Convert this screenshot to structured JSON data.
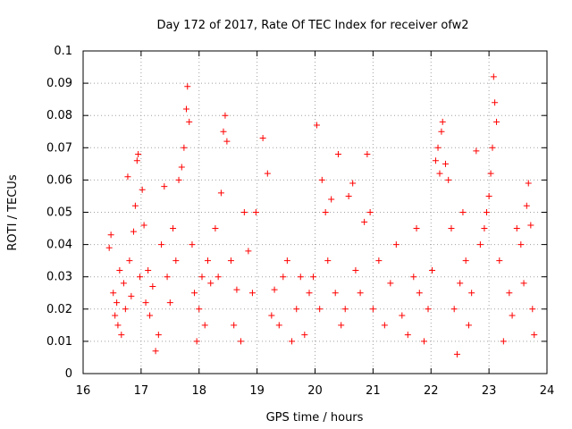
{
  "chart_data": {
    "type": "scatter",
    "title": "Day 172 of 2017, Rate Of TEC Index for receiver ofw2",
    "xlabel": "GPS time / hours",
    "ylabel": "ROTI / TECUs",
    "xlim": [
      16,
      24
    ],
    "ylim": [
      0,
      0.1
    ],
    "xticks": [
      "16",
      "17",
      "18",
      "19",
      "20",
      "21",
      "22",
      "23",
      "24"
    ],
    "yticks": [
      "0",
      "0.01",
      "0.02",
      "0.03",
      "0.04",
      "0.05",
      "0.06",
      "0.07",
      "0.08",
      "0.09",
      "0.1"
    ],
    "grid": true,
    "marker": "plus",
    "color": "#ff0000",
    "series": [
      {
        "name": "",
        "points": [
          [
            16.45,
            0.039
          ],
          [
            16.48,
            0.043
          ],
          [
            16.52,
            0.025
          ],
          [
            16.55,
            0.018
          ],
          [
            16.58,
            0.022
          ],
          [
            16.6,
            0.015
          ],
          [
            16.63,
            0.032
          ],
          [
            16.66,
            0.012
          ],
          [
            16.7,
            0.028
          ],
          [
            16.73,
            0.02
          ],
          [
            16.77,
            0.061
          ],
          [
            16.8,
            0.035
          ],
          [
            16.83,
            0.024
          ],
          [
            16.87,
            0.044
          ],
          [
            16.9,
            0.052
          ],
          [
            16.93,
            0.066
          ],
          [
            16.95,
            0.068
          ],
          [
            16.98,
            0.03
          ],
          [
            17.02,
            0.057
          ],
          [
            17.05,
            0.046
          ],
          [
            17.08,
            0.022
          ],
          [
            17.12,
            0.032
          ],
          [
            17.15,
            0.018
          ],
          [
            17.2,
            0.027
          ],
          [
            17.25,
            0.007
          ],
          [
            17.3,
            0.012
          ],
          [
            17.35,
            0.04
          ],
          [
            17.4,
            0.058
          ],
          [
            17.45,
            0.03
          ],
          [
            17.5,
            0.022
          ],
          [
            17.55,
            0.045
          ],
          [
            17.6,
            0.035
          ],
          [
            17.65,
            0.06
          ],
          [
            17.7,
            0.064
          ],
          [
            17.74,
            0.07
          ],
          [
            17.78,
            0.082
          ],
          [
            17.8,
            0.089
          ],
          [
            17.83,
            0.078
          ],
          [
            17.88,
            0.04
          ],
          [
            17.92,
            0.025
          ],
          [
            17.96,
            0.01
          ],
          [
            18.0,
            0.02
          ],
          [
            18.05,
            0.03
          ],
          [
            18.1,
            0.015
          ],
          [
            18.15,
            0.035
          ],
          [
            18.2,
            0.028
          ],
          [
            18.28,
            0.045
          ],
          [
            18.33,
            0.03
          ],
          [
            18.38,
            0.056
          ],
          [
            18.42,
            0.075
          ],
          [
            18.45,
            0.08
          ],
          [
            18.48,
            0.072
          ],
          [
            18.55,
            0.035
          ],
          [
            18.6,
            0.015
          ],
          [
            18.65,
            0.026
          ],
          [
            18.72,
            0.01
          ],
          [
            18.78,
            0.05
          ],
          [
            18.85,
            0.038
          ],
          [
            18.92,
            0.025
          ],
          [
            18.98,
            0.05
          ],
          [
            19.1,
            0.073
          ],
          [
            19.18,
            0.062
          ],
          [
            19.25,
            0.018
          ],
          [
            19.3,
            0.026
          ],
          [
            19.38,
            0.015
          ],
          [
            19.45,
            0.03
          ],
          [
            19.52,
            0.035
          ],
          [
            19.6,
            0.01
          ],
          [
            19.68,
            0.02
          ],
          [
            19.75,
            0.03
          ],
          [
            19.82,
            0.012
          ],
          [
            19.9,
            0.025
          ],
          [
            19.97,
            0.03
          ],
          [
            20.03,
            0.077
          ],
          [
            20.08,
            0.02
          ],
          [
            20.12,
            0.06
          ],
          [
            20.18,
            0.05
          ],
          [
            20.22,
            0.035
          ],
          [
            20.28,
            0.054
          ],
          [
            20.35,
            0.025
          ],
          [
            20.4,
            0.068
          ],
          [
            20.45,
            0.015
          ],
          [
            20.52,
            0.02
          ],
          [
            20.58,
            0.055
          ],
          [
            20.65,
            0.059
          ],
          [
            20.7,
            0.032
          ],
          [
            20.78,
            0.025
          ],
          [
            20.85,
            0.047
          ],
          [
            20.9,
            0.068
          ],
          [
            20.95,
            0.05
          ],
          [
            21.0,
            0.02
          ],
          [
            21.1,
            0.035
          ],
          [
            21.2,
            0.015
          ],
          [
            21.3,
            0.028
          ],
          [
            21.4,
            0.04
          ],
          [
            21.5,
            0.018
          ],
          [
            21.6,
            0.012
          ],
          [
            21.7,
            0.03
          ],
          [
            21.75,
            0.045
          ],
          [
            21.8,
            0.025
          ],
          [
            21.88,
            0.01
          ],
          [
            21.95,
            0.02
          ],
          [
            22.02,
            0.032
          ],
          [
            22.08,
            0.066
          ],
          [
            22.12,
            0.07
          ],
          [
            22.15,
            0.062
          ],
          [
            22.18,
            0.075
          ],
          [
            22.2,
            0.078
          ],
          [
            22.25,
            0.065
          ],
          [
            22.3,
            0.06
          ],
          [
            22.35,
            0.045
          ],
          [
            22.4,
            0.02
          ],
          [
            22.45,
            0.006
          ],
          [
            22.5,
            0.028
          ],
          [
            22.55,
            0.05
          ],
          [
            22.6,
            0.035
          ],
          [
            22.65,
            0.015
          ],
          [
            22.7,
            0.025
          ],
          [
            22.78,
            0.069
          ],
          [
            22.85,
            0.04
          ],
          [
            22.92,
            0.045
          ],
          [
            22.96,
            0.05
          ],
          [
            23.0,
            0.055
          ],
          [
            23.03,
            0.062
          ],
          [
            23.06,
            0.07
          ],
          [
            23.08,
            0.092
          ],
          [
            23.1,
            0.084
          ],
          [
            23.13,
            0.078
          ],
          [
            23.18,
            0.035
          ],
          [
            23.25,
            0.01
          ],
          [
            23.35,
            0.025
          ],
          [
            23.4,
            0.018
          ],
          [
            23.48,
            0.045
          ],
          [
            23.55,
            0.04
          ],
          [
            23.6,
            0.028
          ],
          [
            23.65,
            0.052
          ],
          [
            23.68,
            0.059
          ],
          [
            23.72,
            0.046
          ],
          [
            23.75,
            0.02
          ],
          [
            23.78,
            0.012
          ]
        ]
      }
    ]
  }
}
